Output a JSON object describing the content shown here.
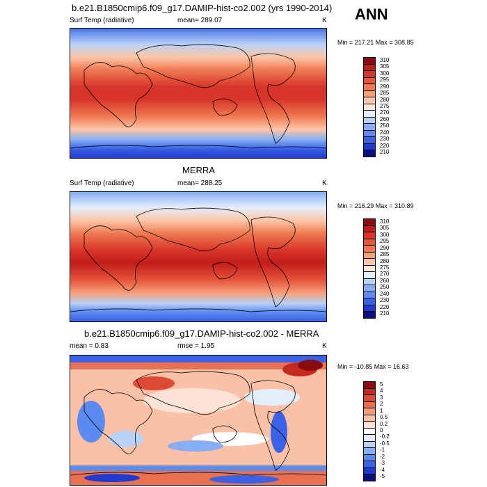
{
  "header": {
    "season": "ANN"
  },
  "panels": [
    {
      "title": "b.e21.B1850cmip6.f09_g17.DAMIP-hist-co2.002 (yrs 1990-2014)",
      "left_label": "Surf Temp (radiative)",
      "center_label": "mean= 289.07",
      "units": "K",
      "minmax": "Min = 217.21 Max = 308.85",
      "colorbar_levels": [
        "310",
        "305",
        "300",
        "295",
        "290",
        "285",
        "280",
        "275",
        "270",
        "260",
        "250",
        "240",
        "230",
        "220",
        "210"
      ]
    },
    {
      "title": "MERRA",
      "left_label": "Surf Temp (radiative)",
      "center_label": "mean= 288.25",
      "units": "K",
      "minmax": "Min = 216.29 Max = 310.89",
      "colorbar_levels": [
        "310",
        "305",
        "300",
        "295",
        "290",
        "285",
        "280",
        "275",
        "270",
        "260",
        "250",
        "240",
        "230",
        "220",
        "210"
      ]
    },
    {
      "title": "b.e21.B1850cmip6.f09_g17.DAMIP-hist-co2.002 - MERRA",
      "left_label": "mean =   0.83",
      "center_label": "rmse =   1.95",
      "units": "K",
      "minmax": "Min = -10.85 Max =  16.63",
      "colorbar_levels": [
        "5",
        "4",
        "3",
        "2",
        "1",
        "0.5",
        "0.2",
        "0",
        "-0.2",
        "-0.5",
        "-1",
        "-2",
        "-3",
        "-4",
        "-5"
      ]
    }
  ],
  "colors": {
    "temp_scale": [
      "#0a0f80",
      "#1e3ad0",
      "#3a62e6",
      "#5b8af0",
      "#86adf5",
      "#b8d2f8",
      "#e3eefc",
      "#fde8dc",
      "#fbc6a8",
      "#f6a07a",
      "#ef7a52",
      "#e6553a",
      "#d8352a",
      "#c01d1b",
      "#8a0c0c"
    ],
    "diff_scale": [
      "#0a0f80",
      "#1e3ad0",
      "#3a62e6",
      "#5b8af0",
      "#86adf5",
      "#b8d2f8",
      "#e3eefc",
      "#ffffff",
      "#fde3d6",
      "#fbc1a6",
      "#f49a78",
      "#ea7150",
      "#dd4933",
      "#c52a20",
      "#8a0c0c"
    ]
  }
}
